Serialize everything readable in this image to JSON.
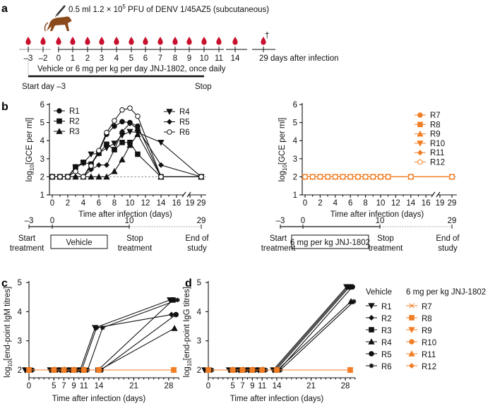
{
  "colors": {
    "vehicle": "#111111",
    "treated": "#f07e26",
    "blood": "#c8102e",
    "monkey": "#8b4a1c",
    "gray": "#9a9a9a"
  },
  "panel_a": {
    "letter": "a",
    "inoculum_prefix": "0.5 ml 1.2 × 10",
    "inoculum_sup": "5",
    "inoculum_suffix": " PFU of DENV 1/45AZ5 (subcutaneous)",
    "day_labels": [
      "–3",
      "–2",
      "0",
      "1",
      "2",
      "3",
      "4",
      "5",
      "6",
      "7",
      "8",
      "9",
      "10",
      "11",
      "14"
    ],
    "final_label": "29 days after infection",
    "dagger": "†",
    "regimen": "Vehicle or 6 mg per kg per day JNJ-1802, once daily",
    "start": "Start day –3",
    "stop": "Stop"
  },
  "panel_b": {
    "letter": "b",
    "timeline": {
      "ticks": [
        "–3",
        "0",
        "10",
        "29"
      ],
      "start": [
        "Start",
        "treatment"
      ],
      "stop": [
        "Stop",
        "treatment"
      ],
      "end": [
        "End of",
        "study"
      ],
      "vehicle_box": "Vehicle",
      "treated_box": "6 mg per kg JNJ-1802"
    }
  },
  "panel_c": {
    "letter": "c"
  },
  "panel_d": {
    "letter": "d",
    "legend_vehicle_title": "Vehicle",
    "legend_treated_title": "6 mg per kg JNJ-1802"
  },
  "chart_data": [
    {
      "id": "b-vehicle",
      "type": "line",
      "xlabel": "Time after infection (days)",
      "ylabel": {
        "prefix": "log",
        "sub": "10",
        "suffix": "[GCE per ml]"
      },
      "ylim": [
        1,
        6
      ],
      "yticks": [
        "1",
        "2",
        "3",
        "4",
        "5",
        "6"
      ],
      "xticks": [
        "0",
        "2",
        "4",
        "6",
        "8",
        "10",
        "12",
        "14",
        "16",
        "19",
        "29"
      ],
      "x_axis_break": [
        17,
        19
      ],
      "lloq_line": 2,
      "x": [
        0,
        1,
        2,
        3,
        4,
        5,
        6,
        7,
        8,
        9,
        10,
        11,
        14,
        29
      ],
      "series": [
        {
          "name": "R1",
          "marker": "circle",
          "values": [
            2,
            2,
            2,
            2.3,
            2,
            2.7,
            3.4,
            4.35,
            4.8,
            5.05,
            5.0,
            4.8,
            2,
            2
          ]
        },
        {
          "name": "R2",
          "marker": "square",
          "values": [
            2,
            2,
            2,
            2.55,
            2.8,
            2.7,
            3.3,
            3.8,
            3.5,
            3.9,
            3.9,
            3.25,
            2,
            2
          ]
        },
        {
          "name": "R3",
          "marker": "triangle",
          "values": [
            2,
            2,
            2,
            2,
            2,
            2,
            2,
            2,
            2.3,
            2.95,
            3.75,
            4.35,
            2,
            2
          ]
        },
        {
          "name": "R4",
          "marker": "tri-down",
          "values": [
            2,
            2,
            2,
            2.5,
            2.75,
            3.25,
            3.3,
            3.6,
            3.85,
            4.3,
            4.5,
            4.45,
            3.9,
            2
          ]
        },
        {
          "name": "R5",
          "marker": "diamond",
          "values": [
            2,
            2,
            2,
            2,
            2,
            2.4,
            2.65,
            2.65,
            3.5,
            4.5,
            4.95,
            4.65,
            2.65,
            2
          ]
        },
        {
          "name": "R6",
          "marker": "open-circle",
          "values": [
            2,
            2,
            2,
            2.3,
            2,
            2.6,
            3.45,
            4.45,
            5.1,
            5.7,
            5.8,
            5.35,
            2,
            2
          ]
        }
      ]
    },
    {
      "id": "b-treated",
      "type": "line",
      "xlabel": "Time after infection (days)",
      "ylabel": {
        "prefix": "log",
        "sub": "10",
        "suffix": "[GCE per ml]"
      },
      "ylim": [
        1,
        6
      ],
      "yticks": [
        "1",
        "2",
        "3",
        "4",
        "5",
        "6"
      ],
      "xticks": [
        "0",
        "2",
        "4",
        "6",
        "8",
        "10",
        "12",
        "14",
        "16",
        "19",
        "29"
      ],
      "x_axis_break": [
        17,
        19
      ],
      "lloq_line": 2,
      "x": [
        0,
        1,
        2,
        3,
        4,
        5,
        6,
        7,
        8,
        9,
        10,
        11,
        14,
        29
      ],
      "series": [
        {
          "name": "R7",
          "marker": "circle",
          "values": [
            2,
            2,
            2,
            2,
            2,
            2,
            2,
            2,
            2,
            2,
            2,
            2,
            2,
            2
          ]
        },
        {
          "name": "R8",
          "marker": "square",
          "values": [
            2,
            2,
            2,
            2,
            2,
            2,
            2,
            2,
            2,
            2,
            2,
            2,
            2,
            2
          ]
        },
        {
          "name": "R9",
          "marker": "triangle",
          "values": [
            2,
            2,
            2,
            2,
            2,
            2,
            2,
            2,
            2,
            2,
            2,
            2,
            2,
            2
          ]
        },
        {
          "name": "R10",
          "marker": "tri-down",
          "values": [
            2,
            2,
            2,
            2,
            2,
            2,
            2,
            2,
            2,
            2,
            2,
            2,
            2,
            2
          ]
        },
        {
          "name": "R11",
          "marker": "diamond",
          "values": [
            2,
            2,
            2,
            2,
            2,
            2,
            2,
            2,
            2,
            2,
            2,
            2,
            2,
            2
          ]
        },
        {
          "name": "R12",
          "marker": "open-circle",
          "values": [
            2,
            2,
            2,
            2,
            2,
            2,
            2,
            2,
            2,
            2,
            2,
            2,
            2,
            2
          ]
        }
      ]
    },
    {
      "id": "c-igm",
      "type": "line",
      "xlabel": "Time after infection (days)",
      "ylabel": {
        "prefix": "log",
        "sub": "10",
        "suffix": "[end-point IgM titres]"
      },
      "ylim": [
        2,
        5
      ],
      "yticks": [
        "2",
        "3",
        "4",
        "5"
      ],
      "xticks": [
        "0",
        "5",
        "7",
        "9",
        "11",
        "14",
        "21",
        "28"
      ],
      "x": [
        0,
        5,
        7,
        9,
        11,
        14,
        29
      ],
      "series": [
        {
          "name": "R1",
          "group": "vehicle",
          "marker": "tri-down",
          "values": [
            2,
            2,
            2,
            2,
            2,
            3.45,
            4.4
          ]
        },
        {
          "name": "R2",
          "group": "vehicle",
          "marker": "diamond",
          "values": [
            2,
            2,
            2,
            2,
            2,
            3.45,
            3.9
          ]
        },
        {
          "name": "R3",
          "group": "vehicle",
          "marker": "square",
          "values": [
            2,
            2,
            2,
            2,
            2,
            2,
            4.4
          ]
        },
        {
          "name": "R4",
          "group": "vehicle",
          "marker": "triangle",
          "values": [
            2,
            2,
            2,
            2,
            2,
            2,
            3.43
          ]
        },
        {
          "name": "R5",
          "group": "vehicle",
          "marker": "circle",
          "values": [
            2,
            2,
            2,
            2,
            2,
            2,
            3.9
          ]
        },
        {
          "name": "R6",
          "group": "vehicle",
          "marker": "star",
          "values": [
            2,
            2,
            2,
            2,
            2,
            3.45,
            4.4
          ]
        },
        {
          "name": "R7",
          "group": "treated",
          "marker": "x",
          "values": [
            2,
            2,
            2,
            2,
            2,
            2,
            2
          ]
        },
        {
          "name": "R8",
          "group": "treated",
          "marker": "square",
          "values": [
            2,
            2,
            2,
            2,
            2,
            2,
            2
          ]
        },
        {
          "name": "R9",
          "group": "treated",
          "marker": "tri-down",
          "values": [
            2,
            2,
            2,
            2,
            2,
            2,
            2
          ]
        },
        {
          "name": "R10",
          "group": "treated",
          "marker": "circle",
          "values": [
            2,
            2,
            2,
            2,
            2,
            2,
            2
          ]
        },
        {
          "name": "R11",
          "group": "treated",
          "marker": "triangle",
          "values": [
            2,
            2,
            2,
            2,
            2,
            2,
            2
          ]
        },
        {
          "name": "R12",
          "group": "treated",
          "marker": "diamond",
          "values": [
            2,
            2,
            2,
            2,
            2,
            2,
            2
          ]
        }
      ]
    },
    {
      "id": "d-igg",
      "type": "line",
      "xlabel": "Time after infection (days)",
      "ylabel": {
        "prefix": "log",
        "sub": "10",
        "suffix": "[end-point IgG titres]"
      },
      "ylim": [
        2,
        5
      ],
      "yticks": [
        "2",
        "3",
        "4",
        "5"
      ],
      "xticks": [
        "0",
        "5",
        "7",
        "9",
        "11",
        "14",
        "21",
        "28"
      ],
      "x": [
        0,
        5,
        7,
        9,
        11,
        14,
        29
      ],
      "series": [
        {
          "name": "R1",
          "group": "vehicle",
          "marker": "tri-down",
          "values": [
            2,
            2,
            2,
            2,
            2,
            2,
            4.85
          ]
        },
        {
          "name": "R2",
          "group": "vehicle",
          "marker": "diamond",
          "values": [
            2,
            2,
            2,
            2,
            2,
            2,
            4.85
          ]
        },
        {
          "name": "R3",
          "group": "vehicle",
          "marker": "square",
          "values": [
            2,
            2,
            2,
            2,
            2,
            2,
            4.85
          ]
        },
        {
          "name": "R4",
          "group": "vehicle",
          "marker": "triangle",
          "values": [
            2,
            2,
            2,
            2,
            2,
            2,
            4.35
          ]
        },
        {
          "name": "R5",
          "group": "vehicle",
          "marker": "circle",
          "values": [
            2,
            2,
            2,
            2,
            2,
            2,
            4.85
          ]
        },
        {
          "name": "R6",
          "group": "vehicle",
          "marker": "star",
          "values": [
            2,
            2,
            2,
            2,
            2,
            2,
            4.35
          ]
        },
        {
          "name": "R7",
          "group": "treated",
          "marker": "x",
          "values": [
            2,
            2,
            2,
            2,
            2,
            2,
            2
          ]
        },
        {
          "name": "R8",
          "group": "treated",
          "marker": "square",
          "values": [
            2,
            2,
            2,
            2,
            2,
            2,
            2
          ]
        },
        {
          "name": "R9",
          "group": "treated",
          "marker": "tri-down",
          "values": [
            2,
            2,
            2,
            2,
            2,
            2,
            2
          ]
        },
        {
          "name": "R10",
          "group": "treated",
          "marker": "circle",
          "values": [
            2,
            2,
            2,
            2,
            2,
            2,
            2
          ]
        },
        {
          "name": "R11",
          "group": "treated",
          "marker": "triangle",
          "values": [
            2,
            2,
            2,
            2,
            2,
            2,
            2
          ]
        },
        {
          "name": "R12",
          "group": "treated",
          "marker": "diamond",
          "values": [
            2,
            2,
            2,
            2,
            2,
            2,
            2
          ]
        }
      ]
    }
  ]
}
